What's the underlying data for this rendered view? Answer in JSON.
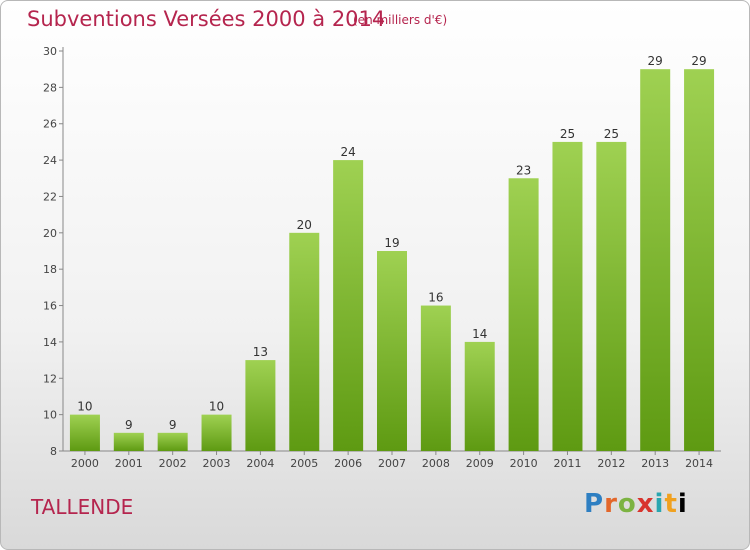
{
  "header": {
    "title": "Subventions Versées 2000 à 2014",
    "unit_note": "(en milliers d'€)"
  },
  "footer": {
    "location": "TALLENDE",
    "logo_text": "Proxiti"
  },
  "colors": {
    "title": "#b5254e",
    "bar_light": "#9fd152",
    "bar_dark": "#5e9a12"
  },
  "chart_data": {
    "type": "bar",
    "categories": [
      "2000",
      "2001",
      "2002",
      "2003",
      "2004",
      "2005",
      "2006",
      "2007",
      "2008",
      "2009",
      "2010",
      "2011",
      "2012",
      "2013",
      "2014"
    ],
    "values": [
      10,
      9,
      9,
      10,
      13,
      20,
      24,
      19,
      16,
      14,
      23,
      25,
      25,
      29,
      29
    ],
    "title": "Subventions Versées 2000 à 2014",
    "subtitle": "(en milliers d'€)",
    "xlabel": "",
    "ylabel": "",
    "ylim": [
      8,
      30
    ],
    "yticks": [
      8,
      10,
      12,
      14,
      16,
      18,
      20,
      22,
      24,
      26,
      28,
      30
    ],
    "grid": false,
    "data_labels": true
  }
}
